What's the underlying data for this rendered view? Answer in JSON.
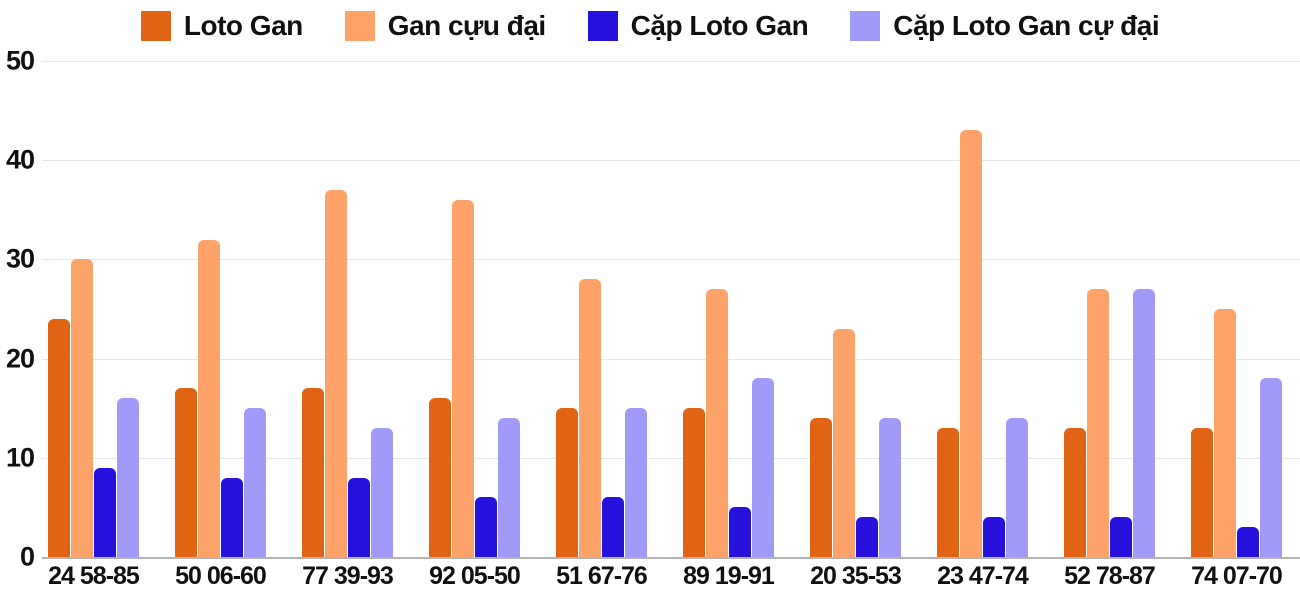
{
  "chart_data": {
    "type": "bar",
    "title": "",
    "xlabel": "",
    "ylabel": "",
    "categories": [
      "24 58-85",
      "50 06-60",
      "77 39-93",
      "92 05-50",
      "51 67-76",
      "89 19-91",
      "20 35-53",
      "23 47-74",
      "52 78-87",
      "74 07-70"
    ],
    "series": [
      {
        "name": "Loto Gan",
        "color": "#e06414",
        "values": [
          24,
          17,
          17,
          16,
          15,
          15,
          14,
          13,
          13,
          13
        ]
      },
      {
        "name": "Gan cựu đại",
        "color": "#fda268",
        "values": [
          30,
          32,
          37,
          36,
          28,
          27,
          23,
          43,
          27,
          25
        ]
      },
      {
        "name": "Cặp Loto Gan",
        "color": "#2712dd",
        "values": [
          9,
          8,
          8,
          6,
          6,
          5,
          4,
          4,
          4,
          3
        ]
      },
      {
        "name": "Cặp Loto Gan cự đại",
        "color": "#a29af8",
        "values": [
          16,
          15,
          13,
          14,
          15,
          18,
          14,
          14,
          27,
          18
        ]
      }
    ],
    "ylim": [
      0,
      50
    ],
    "yticks": [
      0,
      10,
      20,
      30,
      40,
      50
    ],
    "grid": "horizontal",
    "legend_position": "top",
    "colors": {
      "gridline": "#e7e7e7",
      "axis_line": "#b3b3b3",
      "text": "#111111",
      "background": "#ffffff"
    }
  }
}
